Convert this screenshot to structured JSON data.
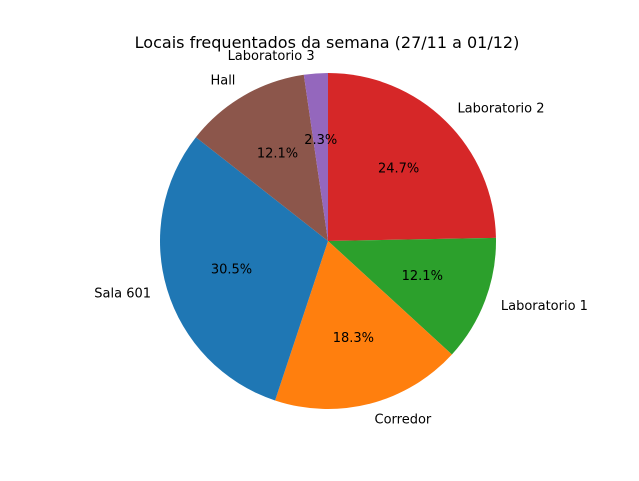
{
  "chart_data": {
    "type": "pie",
    "title": "Locais frequentados da semana (27/11 a 01/12)",
    "start_angle_deg": 90,
    "direction": "clockwise",
    "categories": [
      "Laboratorio 2",
      "Laboratorio 1",
      "Corredor",
      "Sala 601",
      "Hall",
      "Laboratorio 3"
    ],
    "values": [
      24.7,
      12.1,
      18.3,
      30.5,
      12.1,
      2.3
    ],
    "labels": [
      "24.7%",
      "12.1%",
      "18.3%",
      "30.5%",
      "12.1%",
      "2.3%"
    ],
    "colors": [
      "#d62728",
      "#2ca02c",
      "#ff7f0e",
      "#1f77b4",
      "#8c564b",
      "#9467bd"
    ],
    "legend": "none"
  }
}
